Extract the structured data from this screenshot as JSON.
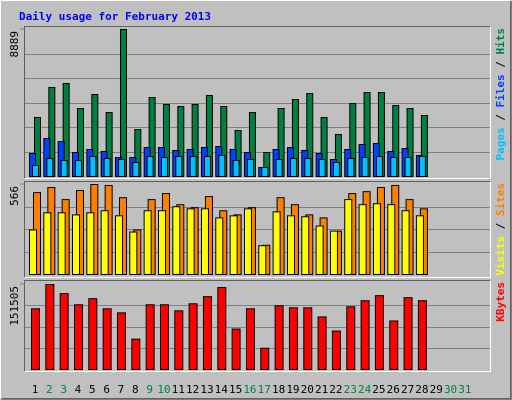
{
  "chart_data": [
    {
      "type": "bar",
      "title": "Daily usage for February 2013",
      "legend_separator": " / ",
      "ylim": [
        0,
        8889
      ],
      "yticks": [
        8889
      ],
      "series": [
        {
          "name": "Hits",
          "color": "#008040",
          "values": [
            3568,
            5382,
            5624,
            4112,
            4958,
            3870,
            8889,
            2842,
            4777,
            4354,
            4233,
            4354,
            4898,
            4233,
            2782,
            3870,
            1451,
            4112,
            4656,
            5019,
            3568,
            2540,
            4414,
            5079,
            5079,
            4293,
            4112,
            3689,
            null,
            null,
            null
          ]
        },
        {
          "name": "Files",
          "color": "#0040ff",
          "values": [
            1391,
            2298,
            2116,
            1451,
            1633,
            1512,
            1149,
            1149,
            1754,
            1754,
            1572,
            1633,
            1754,
            1814,
            1633,
            1451,
            544,
            1633,
            1754,
            1572,
            1391,
            1028,
            1633,
            1935,
            1995,
            1512,
            1693,
            1270,
            null,
            null,
            null
          ]
        },
        {
          "name": "Pages",
          "color": "#00c0ff",
          "values": [
            665,
            1088,
            967,
            967,
            1209,
            1088,
            1028,
            847,
            1209,
            1149,
            1209,
            1209,
            1209,
            1270,
            967,
            1028,
            544,
            1028,
            1088,
            1088,
            1028,
            847,
            1088,
            1149,
            1209,
            1149,
            1149,
            1209,
            null,
            null,
            null
          ]
        }
      ]
    },
    {
      "type": "bar",
      "legend_separator": " / ",
      "ylim": [
        0,
        566
      ],
      "yticks": [
        566
      ],
      "series": [
        {
          "name": "Sites",
          "color": "#ff8000",
          "values": [
            515,
            547,
            471,
            528,
            566,
            560,
            483,
            280,
            471,
            509,
            439,
            420,
            490,
            401,
            375,
            420,
            184,
            483,
            439,
            375,
            356,
            273,
            509,
            521,
            547,
            560,
            471,
            413,
            null,
            null,
            null
          ]
        },
        {
          "name": "Visits",
          "color": "#ffff00",
          "values": [
            280,
            388,
            388,
            375,
            388,
            401,
            369,
            267,
            401,
            401,
            426,
            413,
            413,
            356,
            369,
            413,
            181,
            394,
            369,
            363,
            305,
            273,
            471,
            439,
            445,
            439,
            401,
            369,
            null,
            null,
            null
          ]
        }
      ]
    },
    {
      "type": "bar",
      "ylim": [
        0,
        151505
      ],
      "yticks": [
        151505
      ],
      "categories": [
        "1",
        "2",
        "3",
        "4",
        "5",
        "6",
        "7",
        "8",
        "9",
        "10",
        "11",
        "12",
        "13",
        "14",
        "15",
        "16",
        "17",
        "18",
        "19",
        "20",
        "21",
        "22",
        "23",
        "24",
        "25",
        "26",
        "27",
        "28",
        "29",
        "30",
        "31"
      ],
      "category_colors": [
        "#000000",
        "#008040",
        "#008040",
        "#000000",
        "#000000",
        "#000000",
        "#000000",
        "#000000",
        "#008040",
        "#008040",
        "#000000",
        "#000000",
        "#000000",
        "#000000",
        "#000000",
        "#008040",
        "#008040",
        "#000000",
        "#000000",
        "#000000",
        "#000000",
        "#000000",
        "#008040",
        "#008040",
        "#000000",
        "#000000",
        "#000000",
        "#000000",
        "#000000",
        "#008040",
        "#008040"
      ],
      "series": [
        {
          "name": "KBytes",
          "color": "#ff0000",
          "values": [
            108180,
            151505,
            135225,
            115392,
            126210,
            108180,
            100968,
            54090,
            115392,
            115392,
            104574,
            117195,
            129816,
            146043,
            72120,
            108180,
            37863,
            113589,
            109983,
            109983,
            93756,
            68514,
            111786,
            122604,
            131619,
            86544,
            128013,
            122604,
            null,
            null,
            null
          ]
        }
      ]
    }
  ]
}
